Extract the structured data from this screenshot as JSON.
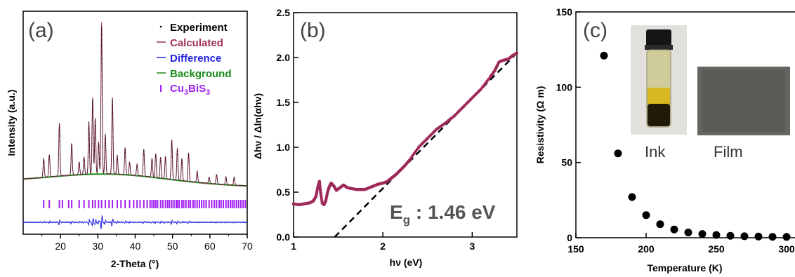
{
  "chart_data": [
    {
      "type": "line",
      "panel_label": "(a)",
      "xlabel": "2-Theta (°)",
      "ylabel": "Intensity (a.u.)",
      "xlim": [
        10,
        70
      ],
      "xticks": [
        "20",
        "30",
        "40",
        "50",
        "60",
        "70"
      ],
      "legend": [
        {
          "label": "Experiment",
          "color": "#000000",
          "marker": "dot"
        },
        {
          "label": "Calculated",
          "color": "#a0305a",
          "marker": "line"
        },
        {
          "label": "Difference",
          "color": "#1f1fe0",
          "marker": "line"
        },
        {
          "label": "Background",
          "color": "#1a8a1a",
          "marker": "line"
        },
        {
          "label": "Cu",
          "sub1": "3",
          "label2": "BiS",
          "sub2": "3",
          "color": "#a020f0",
          "marker": "tick"
        }
      ],
      "peaks": [
        {
          "x": 15.5,
          "h": 0.12
        },
        {
          "x": 17.0,
          "h": 0.14
        },
        {
          "x": 19.7,
          "h": 0.33
        },
        {
          "x": 23.0,
          "h": 0.2
        },
        {
          "x": 25.0,
          "h": 0.08
        },
        {
          "x": 26.3,
          "h": 0.11
        },
        {
          "x": 27.6,
          "h": 0.33
        },
        {
          "x": 28.6,
          "h": 0.48
        },
        {
          "x": 29.3,
          "h": 0.35
        },
        {
          "x": 30.2,
          "h": 0.2
        },
        {
          "x": 31.0,
          "h": 0.95
        },
        {
          "x": 32.0,
          "h": 0.25
        },
        {
          "x": 33.9,
          "h": 0.48
        },
        {
          "x": 35.2,
          "h": 0.12
        },
        {
          "x": 37.3,
          "h": 0.17
        },
        {
          "x": 38.5,
          "h": 0.08
        },
        {
          "x": 40.5,
          "h": 0.07
        },
        {
          "x": 42.3,
          "h": 0.17
        },
        {
          "x": 44.5,
          "h": 0.12
        },
        {
          "x": 45.5,
          "h": 0.15
        },
        {
          "x": 46.8,
          "h": 0.13
        },
        {
          "x": 48.1,
          "h": 0.14
        },
        {
          "x": 49.8,
          "h": 0.25
        },
        {
          "x": 51.3,
          "h": 0.2
        },
        {
          "x": 52.5,
          "h": 0.14
        },
        {
          "x": 54.3,
          "h": 0.18
        },
        {
          "x": 56.6,
          "h": 0.07
        },
        {
          "x": 59.8,
          "h": 0.04
        },
        {
          "x": 61.8,
          "h": 0.06
        },
        {
          "x": 64.3,
          "h": 0.05
        },
        {
          "x": 66.5,
          "h": 0.05
        }
      ],
      "bragg_ticks": [
        15.5,
        17.0,
        19.7,
        20.5,
        22.2,
        23.0,
        25.0,
        26.3,
        27.6,
        28.6,
        29.3,
        30.2,
        31.0,
        32.0,
        33.0,
        33.9,
        35.2,
        36.2,
        37.3,
        38.5,
        39.6,
        40.5,
        41.3,
        42.3,
        43.2,
        44.0,
        44.5,
        45.0,
        45.5,
        46.0,
        46.8,
        47.4,
        48.1,
        48.7,
        49.2,
        49.8,
        50.4,
        51.0,
        51.3,
        51.8,
        52.5,
        53.0,
        53.6,
        54.3,
        54.8,
        55.5,
        56.0,
        56.6,
        57.2,
        57.8,
        58.4,
        59.0,
        59.8,
        60.5,
        61.2,
        61.8,
        62.5,
        63.0,
        63.6,
        64.3,
        64.9,
        65.5,
        66.0,
        66.5,
        67.1,
        67.7,
        68.3,
        68.9,
        69.5
      ]
    },
    {
      "type": "scatter",
      "panel_label": "(b)",
      "xlabel": "hν (eV)",
      "ylabel": "Δhν / Δln(αhν)",
      "xlim": [
        1,
        3.5
      ],
      "ylim": [
        0,
        2.5
      ],
      "xticks": [
        1,
        2,
        3
      ],
      "yticks": [
        0.0,
        0.5,
        1.0,
        1.5,
        2.0,
        2.5
      ],
      "annotation": {
        "label": "E",
        "sub": "g",
        "value": " : 1.46 eV"
      },
      "fit_line": {
        "x0": 1.46,
        "y0": 0.0,
        "x1": 3.5,
        "y1": 2.05,
        "style": "dashed"
      },
      "series": [
        {
          "color": "#9e2a5a",
          "x": [
            1.0,
            1.06,
            1.12,
            1.18,
            1.22,
            1.25,
            1.27,
            1.29,
            1.3,
            1.32,
            1.34,
            1.36,
            1.38,
            1.4,
            1.42,
            1.45,
            1.48,
            1.52,
            1.56,
            1.6,
            1.65,
            1.7,
            1.75,
            1.8,
            1.85,
            1.9,
            1.95,
            2.0,
            2.05,
            2.1,
            2.15,
            2.2,
            2.25,
            2.3,
            2.4,
            2.5,
            2.6,
            2.7,
            2.8,
            2.9,
            3.0,
            3.1,
            3.2,
            3.25,
            3.3,
            3.35,
            3.4,
            3.45,
            3.5
          ],
          "y": [
            0.37,
            0.36,
            0.37,
            0.38,
            0.4,
            0.45,
            0.55,
            0.62,
            0.52,
            0.38,
            0.36,
            0.4,
            0.5,
            0.56,
            0.6,
            0.57,
            0.52,
            0.55,
            0.58,
            0.55,
            0.54,
            0.53,
            0.53,
            0.53,
            0.55,
            0.57,
            0.59,
            0.6,
            0.62,
            0.66,
            0.7,
            0.75,
            0.8,
            0.86,
            1.0,
            1.1,
            1.2,
            1.27,
            1.35,
            1.45,
            1.55,
            1.65,
            1.78,
            1.85,
            1.95,
            1.97,
            1.98,
            2.02,
            2.05
          ]
        }
      ]
    },
    {
      "type": "scatter",
      "panel_label": "(c)",
      "xlabel": "Temperature (K)",
      "ylabel": "Resistivity (Ω m)",
      "xlim": [
        150,
        310
      ],
      "ylim": [
        0,
        150
      ],
      "xticks": [
        150,
        200,
        250,
        300
      ],
      "yticks": [
        0,
        50,
        100,
        150
      ],
      "series": [
        {
          "color": "#000000",
          "x": [
            170,
            180,
            190,
            200,
            210,
            220,
            230,
            240,
            250,
            260,
            270,
            280,
            290,
            300
          ],
          "y": [
            121,
            56,
            27,
            15,
            9,
            5.5,
            3.5,
            2.5,
            1.8,
            1.3,
            1.0,
            0.8,
            0.6,
            0.5
          ]
        }
      ],
      "inset_labels": [
        "Ink",
        "Film"
      ]
    }
  ]
}
